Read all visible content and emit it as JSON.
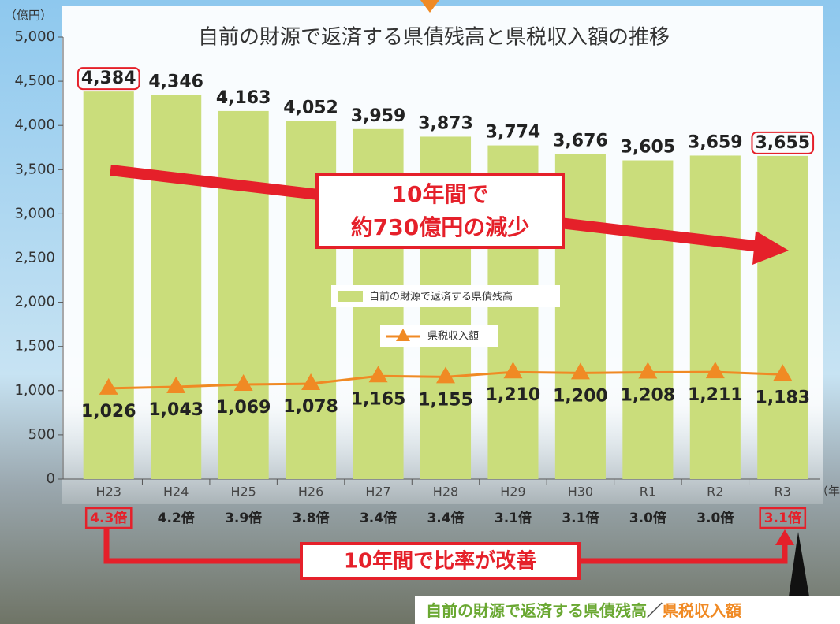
{
  "chart_data": {
    "type": "bar",
    "title": "自前の財源で返済する県債残高と県税収入額の推移",
    "y_label": "（億円）",
    "x_label": "（年度）",
    "categories": [
      "H23",
      "H24",
      "H25",
      "H26",
      "H27",
      "H28",
      "H29",
      "H30",
      "R1",
      "R2",
      "R3"
    ],
    "series": [
      {
        "name": "自前の財源で返済する県債残高",
        "type": "bar",
        "color": "#cadd7b",
        "values": [
          4384,
          4346,
          4163,
          4052,
          3959,
          3873,
          3774,
          3676,
          3605,
          3659,
          3655
        ],
        "value_labels": [
          "4,384",
          "4,346",
          "4,163",
          "4,052",
          "3,959",
          "3,873",
          "3,774",
          "3,676",
          "3,605",
          "3,659",
          "3,655"
        ]
      },
      {
        "name": "県税収入額",
        "type": "line",
        "color": "#f08a24",
        "values": [
          1026,
          1043,
          1069,
          1078,
          1165,
          1155,
          1210,
          1200,
          1208,
          1211,
          1183
        ],
        "value_labels": [
          "1,026",
          "1,043",
          "1,069",
          "1,078",
          "1,165",
          "1,155",
          "1,210",
          "1,200",
          "1,208",
          "1,211",
          "1,183"
        ]
      }
    ],
    "ratio_labels": [
      "4.3倍",
      "4.2倍",
      "3.9倍",
      "3.8倍",
      "3.4倍",
      "3.4倍",
      "3.1倍",
      "3.1倍",
      "3.0倍",
      "3.0倍",
      "3.1倍"
    ],
    "ylim": [
      0,
      5000
    ],
    "yticks": [
      0,
      500,
      {
        "value": 1000,
        "label": "1,000"
      },
      {
        "value": 1500,
        "label": "1,500"
      },
      {
        "value": 2000,
        "label": "2,000"
      },
      {
        "value": 2500,
        "label": "2,500"
      },
      {
        "value": 3000,
        "label": "3,000"
      },
      {
        "value": 3500,
        "label": "3,500"
      },
      {
        "value": 4000,
        "label": "4,000"
      },
      {
        "value": 4500,
        "label": "4,500"
      },
      {
        "value": 5000,
        "label": "5,000"
      }
    ],
    "annotations": [
      "10年間で",
      "約730億円の減少",
      "10年間で比率が改善"
    ],
    "bottom_label": [
      "自前の財源で返済する県債残高",
      "／",
      "県税収入額"
    ]
  }
}
